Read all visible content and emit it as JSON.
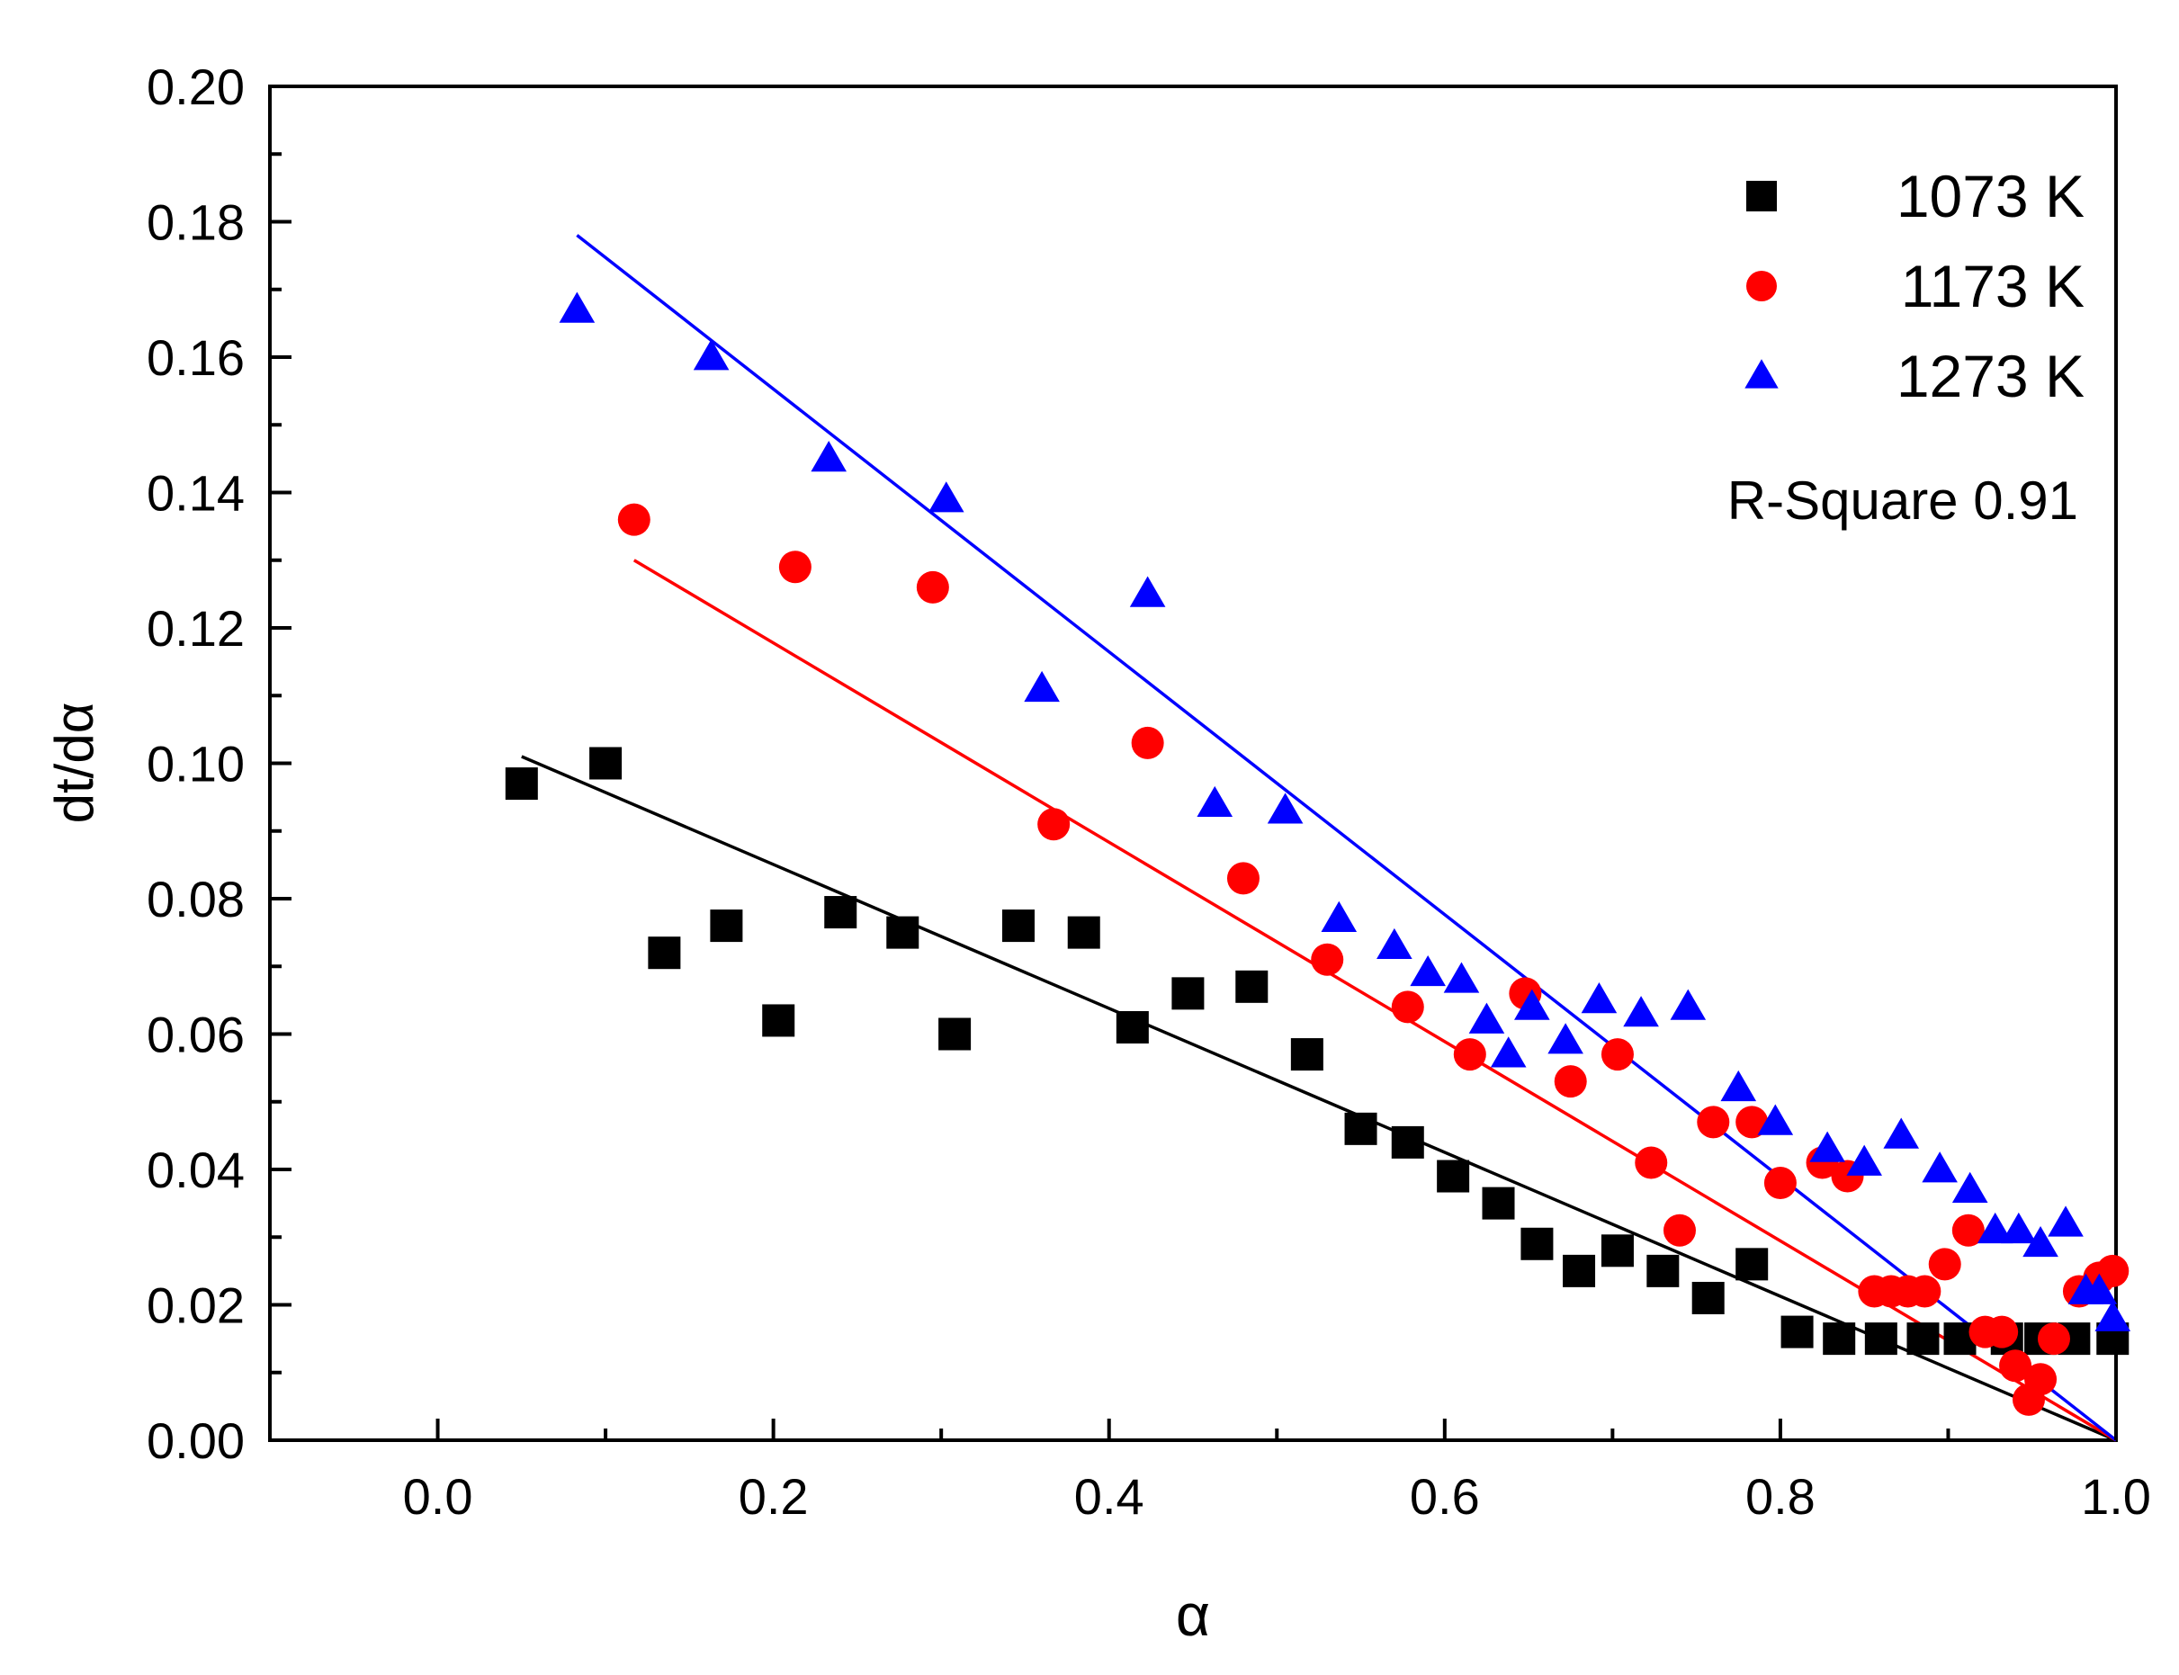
{
  "chart_data": {
    "type": "scatter",
    "title": "",
    "xlabel": "α",
    "ylabel": "dt/dα",
    "xlim": [
      -0.1,
      1.0
    ],
    "ylim": [
      0.0,
      0.2
    ],
    "xticks": [
      "0.0",
      "0.2",
      "0.4",
      "0.6",
      "0.8",
      "1.0"
    ],
    "yticks": [
      "0.00",
      "0.02",
      "0.04",
      "0.06",
      "0.08",
      "0.10",
      "0.12",
      "0.14",
      "0.16",
      "0.18",
      "0.20"
    ],
    "grid": false,
    "legend_position": "top-right",
    "annotation": "R-Square 0.91",
    "series": [
      {
        "name": "1073 K",
        "marker": "square",
        "color": "#000000",
        "points": [
          [
            0.05,
            0.097
          ],
          [
            0.1,
            0.1
          ],
          [
            0.135,
            0.072
          ],
          [
            0.172,
            0.076
          ],
          [
            0.203,
            0.062
          ],
          [
            0.24,
            0.078
          ],
          [
            0.277,
            0.075
          ],
          [
            0.308,
            0.06
          ],
          [
            0.346,
            0.076
          ],
          [
            0.385,
            0.075
          ],
          [
            0.414,
            0.061
          ],
          [
            0.447,
            0.066
          ],
          [
            0.485,
            0.067
          ],
          [
            0.518,
            0.057
          ],
          [
            0.55,
            0.046
          ],
          [
            0.578,
            0.044
          ],
          [
            0.605,
            0.039
          ],
          [
            0.632,
            0.035
          ],
          [
            0.655,
            0.029
          ],
          [
            0.68,
            0.025
          ],
          [
            0.703,
            0.028
          ],
          [
            0.73,
            0.025
          ],
          [
            0.757,
            0.021
          ],
          [
            0.783,
            0.026
          ],
          [
            0.81,
            0.016
          ],
          [
            0.835,
            0.015
          ],
          [
            0.86,
            0.015
          ],
          [
            0.885,
            0.015
          ],
          [
            0.907,
            0.015
          ],
          [
            0.935,
            0.015
          ],
          [
            0.955,
            0.015
          ],
          [
            0.975,
            0.015
          ],
          [
            0.998,
            0.015
          ]
        ],
        "fit": [
          [
            0.05,
            0.101
          ],
          [
            1.0,
            0.0
          ]
        ]
      },
      {
        "name": "1173 K",
        "marker": "circle",
        "color": "#ff0000",
        "points": [
          [
            0.117,
            0.136
          ],
          [
            0.213,
            0.129
          ],
          [
            0.295,
            0.126
          ],
          [
            0.367,
            0.091
          ],
          [
            0.423,
            0.103
          ],
          [
            0.48,
            0.083
          ],
          [
            0.53,
            0.071
          ],
          [
            0.578,
            0.064
          ],
          [
            0.615,
            0.057
          ],
          [
            0.648,
            0.066
          ],
          [
            0.675,
            0.053
          ],
          [
            0.703,
            0.057
          ],
          [
            0.723,
            0.041
          ],
          [
            0.74,
            0.031
          ],
          [
            0.76,
            0.047
          ],
          [
            0.783,
            0.047
          ],
          [
            0.8,
            0.038
          ],
          [
            0.825,
            0.041
          ],
          [
            0.84,
            0.039
          ],
          [
            0.856,
            0.022
          ],
          [
            0.866,
            0.022
          ],
          [
            0.876,
            0.022
          ],
          [
            0.886,
            0.022
          ],
          [
            0.898,
            0.026
          ],
          [
            0.912,
            0.031
          ],
          [
            0.922,
            0.016
          ],
          [
            0.932,
            0.016
          ],
          [
            0.94,
            0.011
          ],
          [
            0.948,
            0.006
          ],
          [
            0.955,
            0.009
          ],
          [
            0.963,
            0.015
          ],
          [
            0.978,
            0.022
          ],
          [
            0.99,
            0.024
          ],
          [
            0.998,
            0.025
          ]
        ],
        "fit": [
          [
            0.117,
            0.13
          ],
          [
            1.0,
            0.0
          ]
        ]
      },
      {
        "name": "1273 K",
        "marker": "triangle",
        "color": "#0000ff",
        "points": [
          [
            0.083,
            0.167
          ],
          [
            0.163,
            0.16
          ],
          [
            0.233,
            0.145
          ],
          [
            0.303,
            0.139
          ],
          [
            0.36,
            0.111
          ],
          [
            0.423,
            0.125
          ],
          [
            0.463,
            0.094
          ],
          [
            0.505,
            0.093
          ],
          [
            0.537,
            0.077
          ],
          [
            0.57,
            0.073
          ],
          [
            0.59,
            0.069
          ],
          [
            0.61,
            0.068
          ],
          [
            0.625,
            0.062
          ],
          [
            0.638,
            0.057
          ],
          [
            0.652,
            0.064
          ],
          [
            0.672,
            0.059
          ],
          [
            0.692,
            0.065
          ],
          [
            0.717,
            0.063
          ],
          [
            0.745,
            0.064
          ],
          [
            0.775,
            0.052
          ],
          [
            0.797,
            0.047
          ],
          [
            0.828,
            0.043
          ],
          [
            0.85,
            0.041
          ],
          [
            0.872,
            0.045
          ],
          [
            0.895,
            0.04
          ],
          [
            0.913,
            0.037
          ],
          [
            0.928,
            0.031
          ],
          [
            0.942,
            0.031
          ],
          [
            0.955,
            0.029
          ],
          [
            0.97,
            0.032
          ],
          [
            0.982,
            0.022
          ],
          [
            0.99,
            0.022
          ],
          [
            0.998,
            0.018
          ]
        ],
        "fit": [
          [
            0.083,
            0.178
          ],
          [
            1.0,
            0.0
          ]
        ]
      }
    ]
  }
}
